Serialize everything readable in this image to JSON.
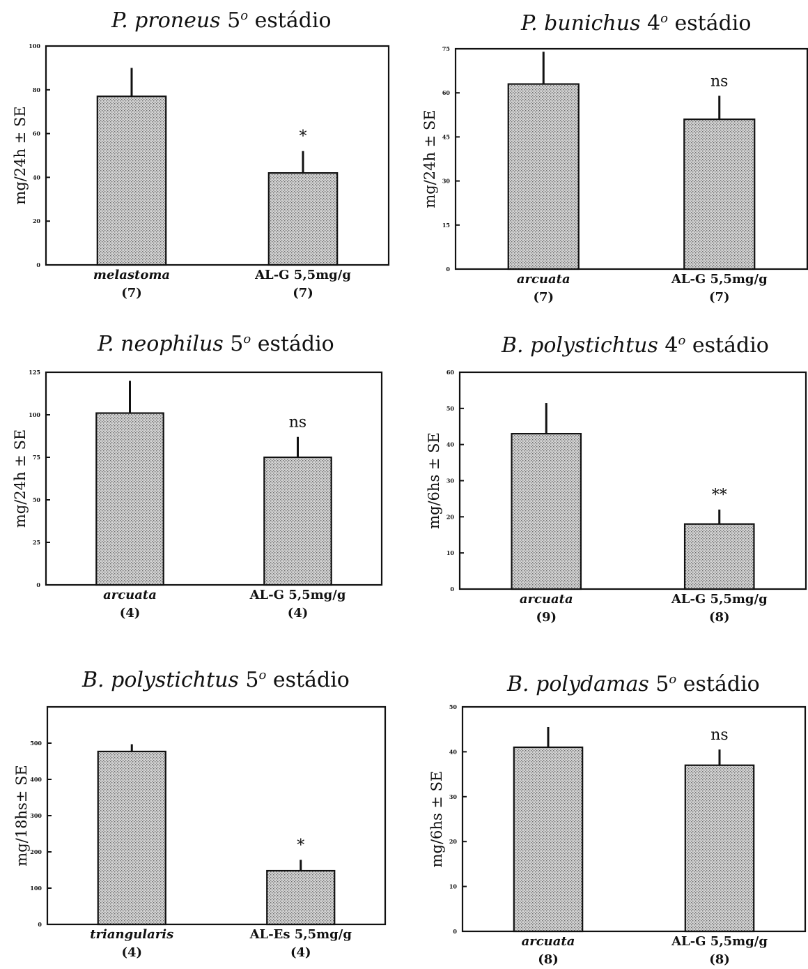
{
  "figure": {
    "panels": [
      {
        "title": {
          "species": "P. proneus",
          "stage_number": "5",
          "degree": "o",
          "stage_word": "estádio"
        }
      },
      {
        "title": {
          "species": "P. bunichus",
          "stage_number": "4",
          "degree": "o",
          "stage_word": "estádio"
        }
      },
      {
        "title": {
          "species": "P. neophilus",
          "stage_number": "5",
          "degree": "o",
          "stage_word": "estádio"
        }
      },
      {
        "title": {
          "species": "B. polystichtus",
          "stage_number": "4",
          "degree": "o",
          "stage_word": "estádio"
        }
      },
      {
        "title": {
          "species": "B. polystichtus",
          "stage_number": "5",
          "degree": "o",
          "stage_word": "estádio"
        }
      },
      {
        "title": {
          "species": "B. polydamas",
          "stage_number": "5",
          "degree": "o",
          "stage_word": "estádio"
        }
      }
    ]
  },
  "chart_data": [
    {
      "type": "bar",
      "title": "P. proneus 5o estádio",
      "ylabel": "mg/24h ± SE",
      "ylim": [
        0,
        100
      ],
      "yticks": [
        "0",
        "20",
        "40",
        "60",
        "80",
        "100"
      ],
      "categories": [
        "melastoma",
        "AL-G 5,5mg/g"
      ],
      "category_italic": [
        true,
        false
      ],
      "n": [
        "(7)",
        "(7)"
      ],
      "values": [
        77,
        42
      ],
      "errors": [
        13,
        10
      ],
      "annotations": [
        "",
        "*"
      ],
      "bar_fill": "#c9c9c9"
    },
    {
      "type": "bar",
      "title": "P. bunichus 4o estádio",
      "ylabel": "mg/24h ± SE",
      "ylim": [
        0,
        75
      ],
      "yticks": [
        "0",
        "15",
        "30",
        "45",
        "60",
        "75"
      ],
      "categories": [
        "arcuata",
        "AL-G 5,5mg/g"
      ],
      "category_italic": [
        true,
        false
      ],
      "n": [
        "(7)",
        "(7)"
      ],
      "values": [
        63,
        51
      ],
      "errors": [
        11,
        8
      ],
      "annotations": [
        "",
        "ns"
      ],
      "bar_fill": "#c9c9c9"
    },
    {
      "type": "bar",
      "title": "P. neophilus 5o estádio",
      "ylabel": "mg/24h ± SE",
      "ylim": [
        0,
        125
      ],
      "yticks": [
        "0",
        "25",
        "50",
        "75",
        "100",
        "125"
      ],
      "categories": [
        "arcuata",
        "AL-G 5,5mg/g"
      ],
      "category_italic": [
        true,
        false
      ],
      "n": [
        "(4)",
        "(4)"
      ],
      "values": [
        101,
        75
      ],
      "errors": [
        19,
        12
      ],
      "annotations": [
        "",
        "ns"
      ],
      "bar_fill": "#c9c9c9"
    },
    {
      "type": "bar",
      "title": "B. polystichtus 4o estádio",
      "ylabel": "mg/6hs ± SE",
      "ylim": [
        0,
        60
      ],
      "yticks": [
        "0",
        "10",
        "20",
        "30",
        "40",
        "50",
        "60"
      ],
      "categories": [
        "arcuata",
        "AL-G 5,5mg/g"
      ],
      "category_italic": [
        true,
        false
      ],
      "n": [
        "(9)",
        "(8)"
      ],
      "values": [
        43,
        18
      ],
      "errors": [
        8.5,
        4
      ],
      "annotations": [
        "",
        "**"
      ],
      "bar_fill": "#c9c9c9"
    },
    {
      "type": "bar",
      "title": "B. polystichtus 5o estádio",
      "ylabel": "mg/18hs± SE",
      "ylim": [
        0,
        600
      ],
      "yticks": [
        "0",
        "100",
        "200",
        "300",
        "400",
        "500"
      ],
      "categories": [
        "triangularis",
        "AL-Es 5,5mg/g"
      ],
      "category_italic": [
        true,
        false
      ],
      "n": [
        "(4)",
        "(4)"
      ],
      "values": [
        477,
        148
      ],
      "errors": [
        20,
        30
      ],
      "annotations": [
        "",
        "*"
      ],
      "bar_fill": "#c9c9c9"
    },
    {
      "type": "bar",
      "title": "B. polydamas 5o estádio",
      "ylabel": "mg/6hs ± SE",
      "ylim": [
        0,
        50
      ],
      "yticks": [
        "0",
        "10",
        "20",
        "30",
        "40",
        "50"
      ],
      "categories": [
        "arcuata",
        "AL-G 5,5mg/g"
      ],
      "category_italic": [
        true,
        false
      ],
      "n": [
        "(8)",
        "(8)"
      ],
      "values": [
        41,
        37
      ],
      "errors": [
        4.5,
        3.5
      ],
      "annotations": [
        "",
        "ns"
      ],
      "bar_fill": "#c9c9c9"
    }
  ]
}
